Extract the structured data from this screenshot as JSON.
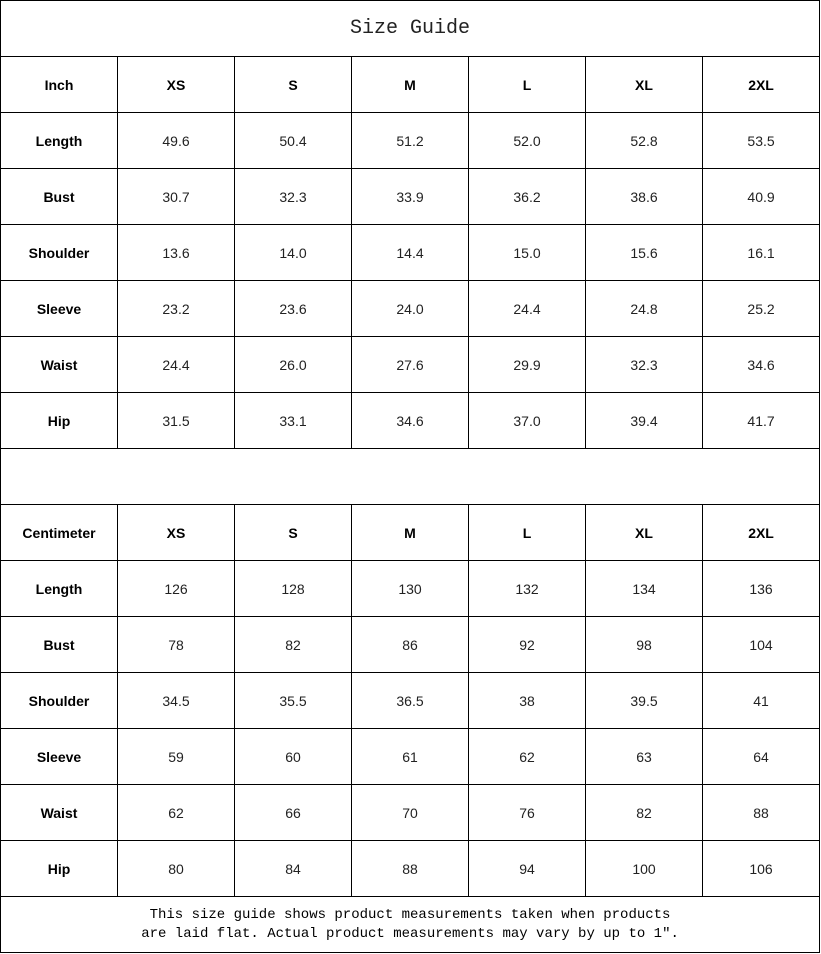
{
  "title": "Size Guide",
  "sizes": [
    "XS",
    "S",
    "M",
    "L",
    "XL",
    "2XL"
  ],
  "tables": [
    {
      "unit": "Inch",
      "rows": [
        {
          "label": "Length",
          "values": [
            "49.6",
            "50.4",
            "51.2",
            "52.0",
            "52.8",
            "53.5"
          ]
        },
        {
          "label": "Bust",
          "values": [
            "30.7",
            "32.3",
            "33.9",
            "36.2",
            "38.6",
            "40.9"
          ]
        },
        {
          "label": "Shoulder",
          "values": [
            "13.6",
            "14.0",
            "14.4",
            "15.0",
            "15.6",
            "16.1"
          ]
        },
        {
          "label": "Sleeve",
          "values": [
            "23.2",
            "23.6",
            "24.0",
            "24.4",
            "24.8",
            "25.2"
          ]
        },
        {
          "label": "Waist",
          "values": [
            "24.4",
            "26.0",
            "27.6",
            "29.9",
            "32.3",
            "34.6"
          ]
        },
        {
          "label": "Hip",
          "values": [
            "31.5",
            "33.1",
            "34.6",
            "37.0",
            "39.4",
            "41.7"
          ]
        }
      ]
    },
    {
      "unit": "Centimeter",
      "rows": [
        {
          "label": "Length",
          "values": [
            "126",
            "128",
            "130",
            "132",
            "134",
            "136"
          ]
        },
        {
          "label": "Bust",
          "values": [
            "78",
            "82",
            "86",
            "92",
            "98",
            "104"
          ]
        },
        {
          "label": "Shoulder",
          "values": [
            "34.5",
            "35.5",
            "36.5",
            "38",
            "39.5",
            "41"
          ]
        },
        {
          "label": "Sleeve",
          "values": [
            "59",
            "60",
            "61",
            "62",
            "63",
            "64"
          ]
        },
        {
          "label": "Waist",
          "values": [
            "62",
            "66",
            "70",
            "76",
            "82",
            "88"
          ]
        },
        {
          "label": "Hip",
          "values": [
            "80",
            "84",
            "88",
            "94",
            "100",
            "106"
          ]
        }
      ]
    }
  ],
  "footnote": {
    "line1": "This size guide shows product measurements taken when products",
    "line2": "are laid flat. Actual product measurements may vary by up to 1″."
  }
}
